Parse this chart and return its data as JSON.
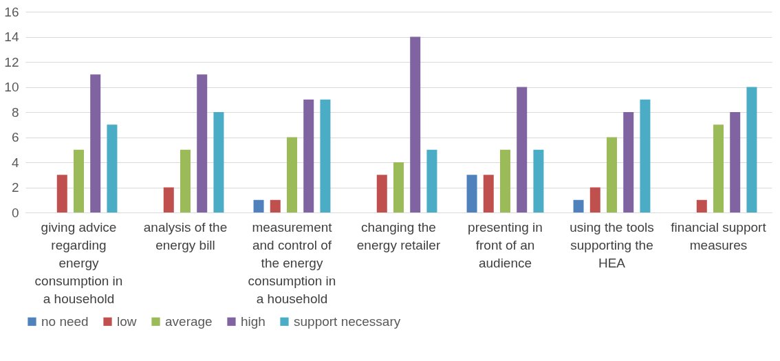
{
  "chart_data": {
    "type": "bar",
    "categories": [
      "giving advice regarding energy consumption in a household",
      "analysis of the energy bill",
      "measurement and control of the energy consumption in a household",
      "changing the energy retailer",
      "presenting in front of an audience",
      "using the tools supporting the HEA",
      "financial support measures"
    ],
    "series": [
      {
        "name": "no need",
        "color": "#4f81bd",
        "values": [
          0,
          0,
          1,
          0,
          3,
          1,
          0
        ]
      },
      {
        "name": "low",
        "color": "#c0504d",
        "values": [
          3,
          2,
          1,
          3,
          3,
          2,
          1
        ]
      },
      {
        "name": "average",
        "color": "#9bbb59",
        "values": [
          5,
          5,
          6,
          4,
          5,
          6,
          7
        ]
      },
      {
        "name": "high",
        "color": "#8064a2",
        "values": [
          11,
          11,
          9,
          14,
          10,
          8,
          8
        ]
      },
      {
        "name": "support necessary",
        "color": "#4bacc6",
        "values": [
          7,
          8,
          9,
          5,
          5,
          9,
          10
        ]
      }
    ],
    "ylim": [
      0,
      16
    ],
    "yticks": [
      0,
      2,
      4,
      6,
      8,
      10,
      12,
      14,
      16
    ],
    "grid": "y",
    "legend": "bottom"
  }
}
